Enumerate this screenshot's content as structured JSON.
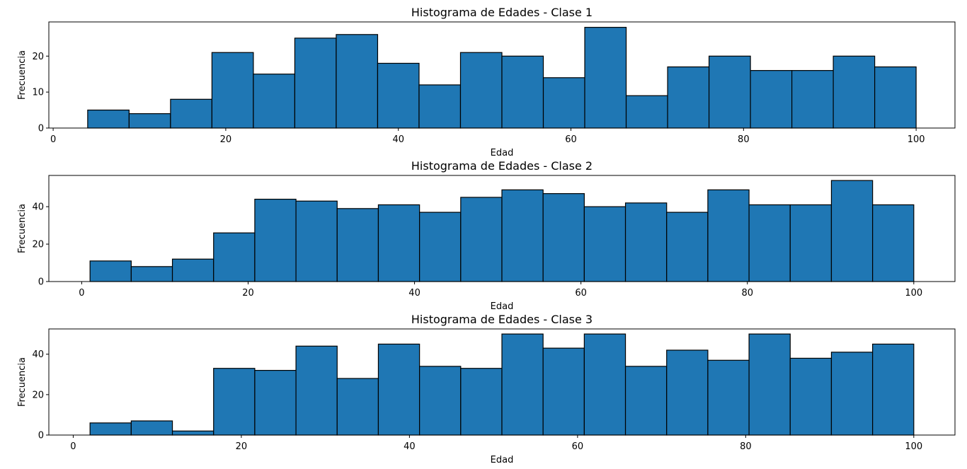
{
  "chart_data": [
    {
      "type": "bar",
      "title": "Histograma de Edades - Clase 1",
      "xlabel": "Edad",
      "ylabel": "Frecuencia",
      "xlim": [
        -0.5,
        104.5
      ],
      "ylim": [
        0,
        29.5
      ],
      "xticks": [
        0,
        20,
        40,
        60,
        80,
        100
      ],
      "yticks": [
        0,
        10,
        20
      ],
      "bin_edges": [
        4.0,
        8.8,
        13.6,
        18.4,
        23.2,
        28.0,
        32.8,
        37.6,
        42.4,
        47.2,
        52.0,
        56.8,
        61.6,
        66.4,
        71.2,
        76.0,
        80.8,
        85.6,
        90.4,
        95.2,
        100.0
      ],
      "values": [
        5,
        4,
        8,
        21,
        15,
        25,
        26,
        18,
        12,
        21,
        20,
        14,
        28,
        9,
        17,
        20,
        16,
        16,
        20,
        17
      ]
    },
    {
      "type": "bar",
      "title": "Histograma de Edades - Clase 2",
      "xlabel": "Edad",
      "ylabel": "Frecuencia",
      "xlim": [
        -3.95,
        104.95
      ],
      "ylim": [
        0,
        56.7
      ],
      "xticks": [
        0,
        20,
        40,
        60,
        80,
        100
      ],
      "yticks": [
        0,
        20,
        40
      ],
      "bin_edges": [
        1.0,
        5.95,
        10.9,
        15.85,
        20.8,
        25.75,
        30.7,
        35.65,
        40.6,
        45.55,
        50.5,
        55.45,
        60.4,
        65.35,
        70.3,
        75.25,
        80.2,
        85.15,
        90.1,
        95.05,
        100.0
      ],
      "values": [
        11,
        8,
        12,
        26,
        44,
        43,
        39,
        41,
        37,
        45,
        49,
        47,
        40,
        42,
        37,
        49,
        41,
        41,
        54,
        41
      ]
    },
    {
      "type": "bar",
      "title": "Histograma de Edades - Clase 3",
      "xlabel": "Edad",
      "ylabel": "Frecuencia",
      "xlim": [
        -2.9,
        104.9
      ],
      "ylim": [
        0,
        52.5
      ],
      "xticks": [
        0,
        20,
        40,
        60,
        80,
        100
      ],
      "yticks": [
        0,
        20,
        40
      ],
      "bin_edges": [
        2.0,
        6.9,
        11.8,
        16.7,
        21.6,
        26.5,
        31.4,
        36.3,
        41.2,
        46.1,
        51.0,
        55.9,
        60.8,
        65.7,
        70.6,
        75.5,
        80.4,
        85.3,
        90.2,
        95.1,
        100.0
      ],
      "values": [
        6,
        7,
        2,
        33,
        32,
        44,
        28,
        45,
        34,
        33,
        50,
        43,
        50,
        34,
        42,
        37,
        50,
        38,
        41,
        45
      ]
    }
  ]
}
